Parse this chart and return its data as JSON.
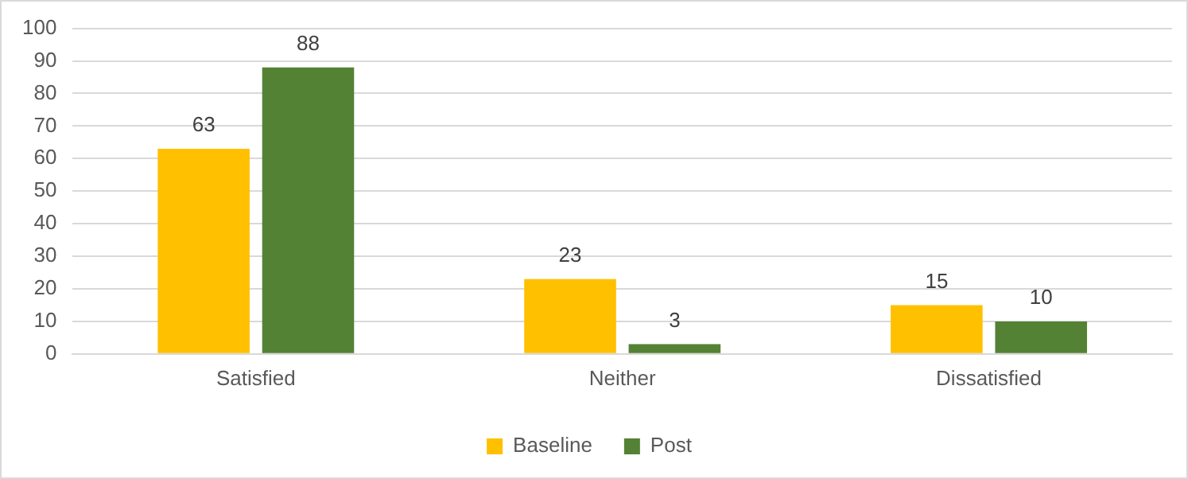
{
  "chart_data": {
    "type": "bar",
    "categories": [
      "Satisfied",
      "Neither",
      "Dissatisfied"
    ],
    "series": [
      {
        "name": "Baseline",
        "color": "#ffc000",
        "values": [
          63,
          23,
          15
        ]
      },
      {
        "name": "Post",
        "color": "#548235",
        "values": [
          88,
          3,
          10
        ]
      }
    ],
    "ylim": [
      0,
      100
    ],
    "yticks": [
      0,
      10,
      20,
      30,
      40,
      50,
      60,
      70,
      80,
      90,
      100
    ],
    "grid": "y",
    "legend": "bottom",
    "data_labels": true
  }
}
